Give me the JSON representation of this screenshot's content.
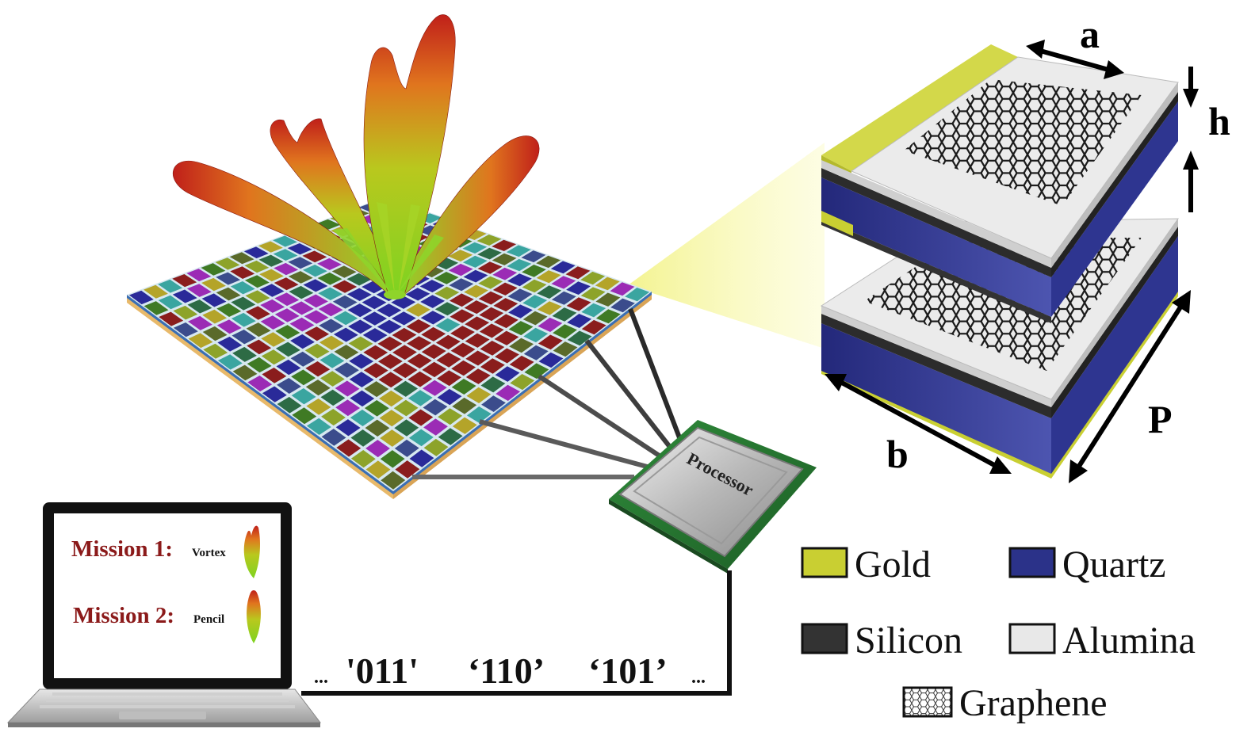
{
  "screen": {
    "mission1_label": "Mission 1:",
    "mission1_mode": "Vortex",
    "mission2_label": "Mission 2:",
    "mission2_mode": "Pencil"
  },
  "processor_label": "Processor",
  "codes": {
    "leading_ellipsis": "...",
    "code1": "'011'",
    "code2": "‘110’",
    "code3": "‘101’",
    "trailing_ellipsis": "..."
  },
  "dimensions": {
    "a": "a",
    "h": "h",
    "b": "b",
    "P": "P"
  },
  "legend": {
    "gold": "Gold",
    "quartz": "Quartz",
    "silicon": "Silicon",
    "alumina": "Alumina",
    "graphene": "Graphene"
  },
  "colors": {
    "gold": "#c9cf32",
    "quartz": "#2b3289",
    "silicon": "#333333",
    "alumina": "#e8e8e8",
    "mission_text": "#8b1a1a",
    "beam_red": "#c0201a",
    "beam_green": "#7ed321"
  },
  "tile_palette": [
    "#2a2a99",
    "#b4a429",
    "#3aa5a0",
    "#8a1d1d",
    "#9b2bb5",
    "#3f7a24",
    "#8da32a",
    "#5a6a2a",
    "#3b4c8c",
    "#2d6b45"
  ],
  "tile_grid": [
    [
      0,
      1,
      2,
      3,
      4,
      5,
      6,
      7,
      0,
      1,
      2,
      3,
      4,
      5,
      6,
      7,
      8,
      9
    ],
    [
      5,
      2,
      0,
      4,
      1,
      8,
      3,
      6,
      9,
      2,
      0,
      5,
      3,
      1,
      8,
      4,
      6,
      7
    ],
    [
      3,
      6,
      9,
      0,
      7,
      2,
      5,
      1,
      4,
      8,
      3,
      6,
      0,
      7,
      2,
      9,
      1,
      5
    ],
    [
      8,
      4,
      1,
      5,
      9,
      6,
      0,
      3,
      7,
      2,
      4,
      8,
      5,
      6,
      1,
      0,
      3,
      2
    ],
    [
      1,
      7,
      4,
      2,
      3,
      4,
      4,
      9,
      0,
      5,
      7,
      1,
      4,
      4,
      6,
      3,
      8,
      0
    ],
    [
      6,
      0,
      8,
      7,
      4,
      4,
      4,
      4,
      2,
      3,
      9,
      6,
      4,
      4,
      4,
      5,
      0,
      4
    ],
    [
      2,
      9,
      3,
      1,
      5,
      4,
      4,
      4,
      8,
      0,
      0,
      0,
      2,
      4,
      3,
      7,
      5,
      1
    ],
    [
      7,
      5,
      6,
      9,
      0,
      3,
      8,
      2,
      0,
      0,
      0,
      0,
      0,
      7,
      9,
      1,
      2,
      6
    ],
    [
      4,
      3,
      0,
      8,
      6,
      1,
      0,
      0,
      0,
      0,
      0,
      0,
      0,
      5,
      4,
      2,
      9,
      3
    ],
    [
      0,
      8,
      5,
      3,
      2,
      7,
      6,
      0,
      0,
      0,
      1,
      0,
      6,
      8,
      0,
      3,
      7,
      2
    ],
    [
      9,
      2,
      7,
      6,
      8,
      0,
      3,
      3,
      3,
      3,
      0,
      9,
      3,
      1,
      6,
      4,
      2,
      8
    ],
    [
      5,
      1,
      9,
      4,
      0,
      3,
      3,
      3,
      3,
      3,
      2,
      3,
      3,
      3,
      3,
      0,
      5,
      7
    ],
    [
      2,
      6,
      4,
      0,
      7,
      3,
      3,
      3,
      3,
      3,
      3,
      3,
      3,
      3,
      8,
      6,
      1,
      0
    ],
    [
      8,
      0,
      2,
      5,
      1,
      9,
      3,
      3,
      3,
      3,
      3,
      3,
      3,
      0,
      2,
      9,
      4,
      3
    ],
    [
      3,
      9,
      7,
      1,
      6,
      2,
      4,
      3,
      3,
      3,
      3,
      3,
      5,
      7,
      1,
      8,
      0,
      6
    ],
    [
      6,
      4,
      1,
      9,
      3,
      8,
      0,
      5,
      3,
      3,
      3,
      7,
      2,
      4,
      9,
      3,
      6,
      1
    ],
    [
      1,
      5,
      8,
      2,
      4,
      6,
      7,
      1,
      9,
      0,
      3,
      8,
      3,
      5,
      0,
      2,
      7,
      4
    ],
    [
      7,
      3,
      0,
      6,
      9,
      1,
      2,
      8,
      4,
      6,
      5,
      0,
      7,
      9,
      3,
      5,
      8,
      2
    ]
  ]
}
